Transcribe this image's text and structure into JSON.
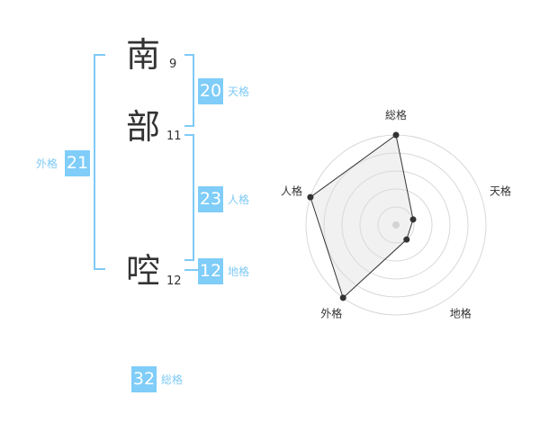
{
  "name_chars": [
    {
      "char": "南",
      "strokes": "9"
    },
    {
      "char": "部",
      "strokes": "11"
    },
    {
      "char": "啌",
      "strokes": "12"
    }
  ],
  "kaku": {
    "tenkaku": {
      "label": "天格",
      "value": "20"
    },
    "jinkaku": {
      "label": "人格",
      "value": "23"
    },
    "chikaku": {
      "label": "地格",
      "value": "12"
    },
    "gaikaku": {
      "label": "外格",
      "value": "21"
    },
    "soukaku": {
      "label": "総格",
      "value": "32"
    }
  },
  "colors": {
    "accent": "#7fcdf8",
    "text": "#333333"
  },
  "chart_data": {
    "type": "radar",
    "categories": [
      "総格",
      "天格",
      "地格",
      "外格",
      "人格"
    ],
    "values": [
      5,
      1,
      1,
      5,
      5
    ],
    "range": [
      0,
      5
    ],
    "grid": true
  }
}
